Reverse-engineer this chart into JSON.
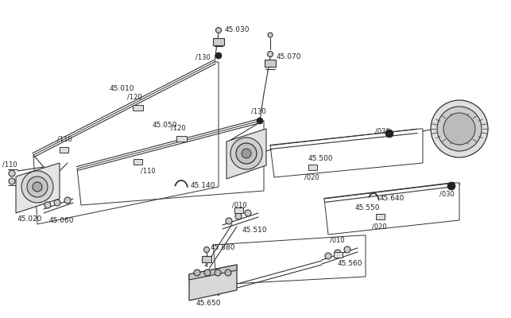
{
  "bg_color": "#ffffff",
  "line_color": "#333333",
  "text_color": "#222222",
  "fig_width": 6.43,
  "fig_height": 4.0,
  "dpi": 100
}
